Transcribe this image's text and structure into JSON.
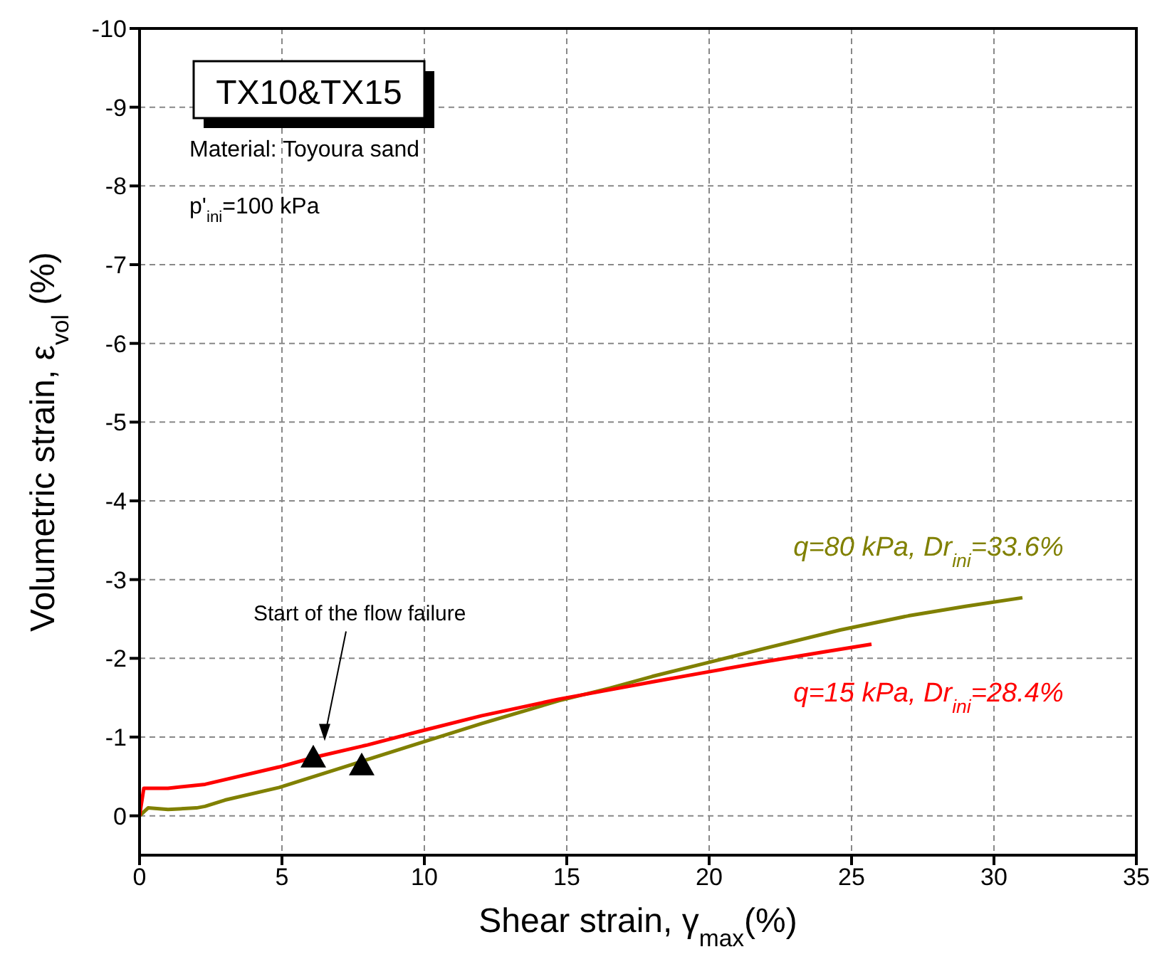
{
  "chart_data": {
    "type": "line",
    "xlabel": "Shear strain, γ$_{max}$(%)",
    "ylabel": "Volumetric strain, ε$_{vol}$ (%)",
    "xlim": [
      0,
      35
    ],
    "xticks": [
      0,
      5,
      10,
      15,
      20,
      25,
      30,
      35
    ],
    "ylim": [
      0.5,
      -10
    ],
    "yticks": [
      0,
      -1,
      -2,
      -3,
      -4,
      -5,
      -6,
      -7,
      -8,
      -9,
      -10
    ],
    "grid": true,
    "marker": "none",
    "line_style": "solid",
    "series": [
      {
        "name": "q=80 kPa, Dr$_{ini}$=33.6%",
        "color": "#808000",
        "x": [
          0,
          0.3,
          1,
          2,
          2.3,
          3,
          4.9,
          7,
          9.8,
          12,
          14.7,
          16.5,
          18,
          20,
          22,
          24.6,
          27,
          29,
          31
        ],
        "values": [
          0,
          -0.1,
          -0.08,
          -0.1,
          -0.12,
          -0.2,
          -0.36,
          -0.6,
          -0.92,
          -1.17,
          -1.46,
          -1.62,
          -1.77,
          -1.95,
          -2.13,
          -2.36,
          -2.54,
          -2.66,
          -2.77
        ]
      },
      {
        "name": "q=15 kPa, Dr$_{ini}$=28.4%",
        "color": "#ff0000",
        "x": [
          0,
          0.15,
          1,
          2.3,
          4.9,
          6.1,
          8,
          9.8,
          12,
          14.7,
          16.5,
          18,
          20,
          22,
          24,
          25.7
        ],
        "values": [
          0,
          -0.35,
          -0.35,
          -0.4,
          -0.62,
          -0.74,
          -0.9,
          -1.07,
          -1.27,
          -1.48,
          -1.6,
          -1.7,
          -1.83,
          -1.96,
          -2.08,
          -2.18
        ]
      },
      {
        "type": "scatter",
        "marker": "triangle",
        "color": "#000000",
        "x": [
          6.1,
          7.8
        ],
        "values": [
          -0.74,
          -0.64
        ]
      }
    ],
    "annotations": [
      "TX10&TX15",
      "Material: Toyoura sand",
      "p'$_{ini}$=100 kPa",
      "Start of the flow failure"
    ]
  }
}
